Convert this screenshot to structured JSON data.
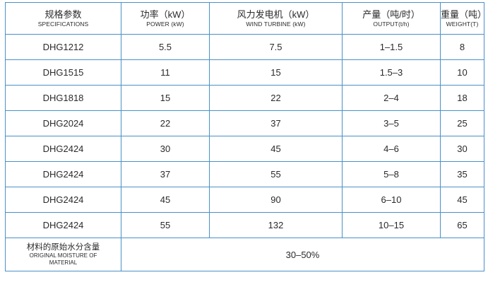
{
  "headers": [
    {
      "zh": "规格参数",
      "en": "SPECIFICATIONS"
    },
    {
      "zh": "功率（kW）",
      "en": "POWER (kW)"
    },
    {
      "zh": "风力发电机（kW）",
      "en": "WIND TURBINE (kW)"
    },
    {
      "zh": "产量（吨/时）",
      "en": "OUTPUT(t/h)"
    },
    {
      "zh": "重量（吨）",
      "en": "WEIGHT(T)"
    }
  ],
  "rows": [
    [
      "DHG1212",
      "5.5",
      "7.5",
      "1–1.5",
      "8"
    ],
    [
      "DHG1515",
      "11",
      "15",
      "1.5–3",
      "10"
    ],
    [
      "DHG1818",
      "15",
      "22",
      "2–4",
      "18"
    ],
    [
      "DHG2024",
      "22",
      "37",
      "3–5",
      "25"
    ],
    [
      "DHG2424",
      "30",
      "45",
      "4–6",
      "30"
    ],
    [
      "DHG2424",
      "37",
      "55",
      "5–8",
      "35"
    ],
    [
      "DHG2424",
      "45",
      "90",
      "6–10",
      "45"
    ],
    [
      "DHG2424",
      "55",
      "132",
      "10–15",
      "65"
    ]
  ],
  "footer": {
    "label_zh": "材料的原始水分含量",
    "label_en_line1": "ORIGINAL MOISTURE OF",
    "label_en_line2": "MATERIAL",
    "value": "30–50%"
  },
  "colors": {
    "border": "#4a90c8",
    "text": "#2a2a2a"
  }
}
